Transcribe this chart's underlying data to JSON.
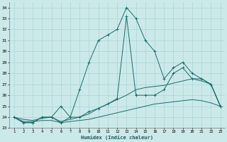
{
  "xlabel": "Humidex (Indice chaleur)",
  "xlim": [
    0.5,
    23.5
  ],
  "ylim": [
    23,
    34.5
  ],
  "yticks": [
    23,
    24,
    25,
    26,
    27,
    28,
    29,
    30,
    31,
    32,
    33,
    34
  ],
  "xticks": [
    1,
    2,
    3,
    4,
    5,
    6,
    7,
    8,
    9,
    10,
    11,
    12,
    13,
    14,
    15,
    16,
    17,
    18,
    19,
    20,
    21,
    22,
    23
  ],
  "background_color": "#cce9ea",
  "grid_color": "#aad4d6",
  "line_color": "#1a6b6b",
  "series": [
    {
      "x": [
        1,
        2,
        3,
        4,
        5,
        6,
        7,
        8,
        9,
        10,
        11,
        12,
        13,
        14,
        15,
        16,
        17,
        18,
        19,
        20,
        21,
        22,
        23
      ],
      "y": [
        24,
        23.5,
        23.5,
        24,
        24,
        25,
        24,
        26.5,
        29,
        31,
        31.5,
        32,
        34,
        33,
        31,
        30,
        27.5,
        28.5,
        29,
        28,
        27.5,
        27,
        25
      ],
      "marker": "+"
    },
    {
      "x": [
        1,
        2,
        3,
        4,
        5,
        6,
        7,
        8,
        9,
        10,
        11,
        12,
        13,
        14,
        15,
        16,
        17,
        18,
        19,
        20,
        21,
        22,
        23
      ],
      "y": [
        24,
        23.5,
        23.5,
        24,
        24,
        23.5,
        24,
        24,
        24.5,
        24.8,
        25.2,
        25.7,
        33.2,
        26,
        26,
        26,
        26.5,
        28,
        28.5,
        27.5,
        27.5,
        27,
        25
      ],
      "marker": "+"
    },
    {
      "x": [
        1,
        2,
        3,
        4,
        5,
        6,
        7,
        8,
        9,
        10,
        11,
        12,
        13,
        14,
        15,
        16,
        17,
        18,
        19,
        20,
        21,
        22,
        23
      ],
      "y": [
        24,
        23.8,
        23.7,
        23.9,
        24.0,
        23.6,
        23.8,
        24.0,
        24.3,
        24.8,
        25.2,
        25.6,
        26.0,
        26.5,
        26.7,
        26.8,
        26.9,
        27.1,
        27.3,
        27.5,
        27.3,
        27.0,
        25
      ],
      "marker": null
    },
    {
      "x": [
        1,
        2,
        3,
        4,
        5,
        6,
        7,
        8,
        9,
        10,
        11,
        12,
        13,
        14,
        15,
        16,
        17,
        18,
        19,
        20,
        21,
        22,
        23
      ],
      "y": [
        24,
        23.6,
        23.6,
        23.7,
        23.7,
        23.5,
        23.6,
        23.7,
        23.8,
        24.0,
        24.2,
        24.4,
        24.6,
        24.8,
        25.0,
        25.2,
        25.3,
        25.4,
        25.5,
        25.6,
        25.5,
        25.3,
        25
      ],
      "marker": null
    }
  ]
}
